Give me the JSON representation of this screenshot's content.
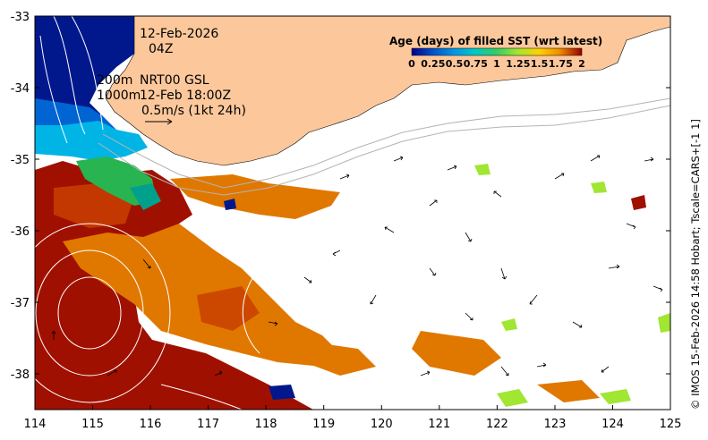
{
  "map": {
    "date": "12-Feb-2026",
    "time": "04Z",
    "contour_label_1": "200m",
    "contour_label_2": "1000m",
    "product": "NRT00 GSL",
    "product_time": "12-Feb 18:00Z",
    "scale_label": "0.5m/s (1kt 24h)",
    "credit": "© IMOS 15-Feb-2026 14:58 Hobart; Tscale=CARS+[-1 1]",
    "lon_ticks": [
      "114",
      "115",
      "116",
      "117",
      "118",
      "119",
      "120",
      "121",
      "122",
      "123",
      "124",
      "125"
    ],
    "lat_ticks": [
      "-33",
      "-34",
      "-35",
      "-36",
      "-37",
      "-38"
    ],
    "lon_range": [
      114,
      125
    ],
    "lat_range": [
      -38.5,
      -33
    ]
  },
  "colorbar": {
    "title": "Age (days) of filled SST (wrt latest)",
    "ticks": [
      "0",
      "0.25",
      "0.5",
      "0.75",
      "1",
      "1.25",
      "1.5",
      "1.75",
      "2"
    ],
    "colors": [
      "#00008b",
      "#0050c8",
      "#0096e6",
      "#00c8c8",
      "#32cd64",
      "#a0e632",
      "#ffd200",
      "#f08c00",
      "#d22800",
      "#960000"
    ]
  },
  "land_color": "#fcc89b"
}
